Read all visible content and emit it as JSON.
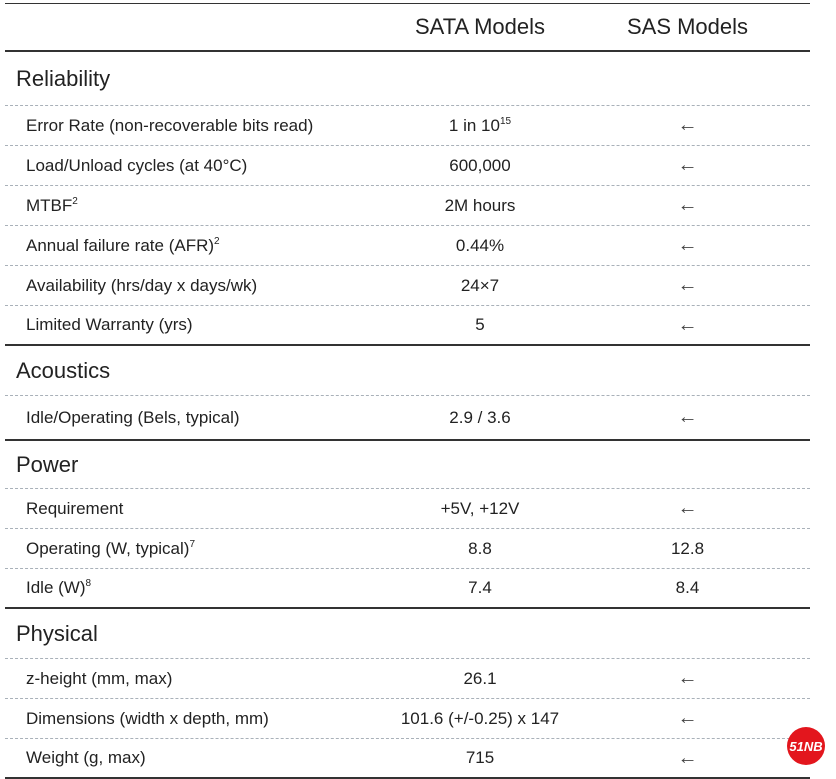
{
  "header": {
    "col_sata": "SATA Models",
    "col_sas": "SAS Models"
  },
  "sections": [
    {
      "title": "Reliability",
      "rows": [
        {
          "label": "Error Rate (non-recoverable bits read)",
          "sup": "",
          "sata": "1 in 10",
          "sata_sup": "15",
          "sas": "←"
        },
        {
          "label": "Load/Unload cycles (at 40°C)",
          "sup": "",
          "sata": "600,000",
          "sata_sup": "",
          "sas": "←"
        },
        {
          "label": "MTBF",
          "sup": "2",
          "sata": "2M hours",
          "sata_sup": "",
          "sas": "←"
        },
        {
          "label": "Annual failure rate (AFR)",
          "sup": "2",
          "sata": "0.44%",
          "sata_sup": "",
          "sas": "←"
        },
        {
          "label": "Availability (hrs/day x days/wk)",
          "sup": "",
          "sata": "24×7",
          "sata_sup": "",
          "sas": "←"
        },
        {
          "label": "Limited Warranty (yrs)",
          "sup": "",
          "sata": "5",
          "sata_sup": "",
          "sas": "←"
        }
      ]
    },
    {
      "title": "Acoustics",
      "rows": [
        {
          "label": "Idle/Operating (Bels, typical)",
          "sup": "",
          "sata": "2.9 / 3.6",
          "sata_sup": "",
          "sas": "←"
        }
      ]
    },
    {
      "title": "Power",
      "rows": [
        {
          "label": "Requirement",
          "sup": "",
          "sata": "+5V, +12V",
          "sata_sup": "",
          "sas": "←"
        },
        {
          "label": "Operating (W, typical)",
          "sup": "7",
          "sata": "8.8",
          "sata_sup": "",
          "sas": "12.8"
        },
        {
          "label": "Idle (W)",
          "sup": "8",
          "sata": "7.4",
          "sata_sup": "",
          "sas": "8.4"
        }
      ]
    },
    {
      "title": "Physical",
      "rows": [
        {
          "label": "z-height (mm, max)",
          "sup": "",
          "sata": "26.1",
          "sata_sup": "",
          "sas": "←"
        },
        {
          "label": "Dimensions (width x depth, mm)",
          "sup": "",
          "sata": "101.6 (+/-0.25) x 147",
          "sata_sup": "",
          "sas": "←"
        },
        {
          "label": "Weight (g, max)",
          "sup": "",
          "sata": "715",
          "sata_sup": "",
          "sas": "←"
        }
      ]
    }
  ],
  "watermark": "51NB",
  "colors": {
    "text": "#222222",
    "dashed": "#a9b1b9",
    "badge": "#e3161d"
  }
}
